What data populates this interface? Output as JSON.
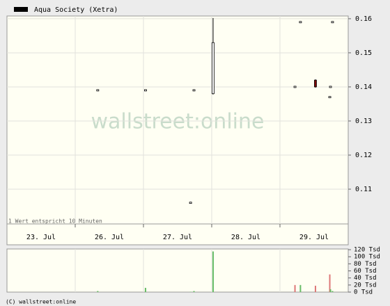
{
  "chart_data": {
    "type": "candlestick",
    "legend": "Aqua Society (Xetra)",
    "legend_color": "#000000",
    "watermark": "wallstreet:online",
    "note": "1 Wert entspricht 10 Minuten",
    "footer": "(C) wallstreet:online",
    "categories": [
      "23. Jul",
      "26. Jul",
      "27. Jul",
      "28. Jul",
      "29. Jul"
    ],
    "xlim": [
      0,
      5
    ],
    "x": [
      1.33,
      2.03,
      2.69,
      2.74,
      3.02,
      4.22,
      4.3,
      4.52,
      4.73,
      4.74,
      4.77
    ],
    "open": [
      0.139,
      0.139,
      0.106,
      0.139,
      0.138,
      0.14,
      0.159,
      0.142,
      0.137,
      0.14,
      0.159
    ],
    "high": [
      0.139,
      0.139,
      0.106,
      0.139,
      0.16,
      0.14,
      0.159,
      0.142,
      0.137,
      0.14,
      0.159
    ],
    "low": [
      0.139,
      0.139,
      0.106,
      0.139,
      0.138,
      0.14,
      0.159,
      0.14,
      0.137,
      0.14,
      0.159
    ],
    "close": [
      0.139,
      0.139,
      0.106,
      0.139,
      0.153,
      0.14,
      0.159,
      0.14,
      0.137,
      0.14,
      0.159
    ],
    "up_color": "#ffffff",
    "down_color": "#7a0000",
    "ylim": [
      0.0998,
      0.1608
    ],
    "yticks": [
      0.11,
      0.12,
      0.13,
      0.14,
      0.15,
      0.16
    ],
    "volume": [
      3,
      12,
      1,
      3,
      115,
      20,
      20,
      18,
      50,
      8,
      3
    ],
    "volume_colors": [
      "#66bb66",
      "#66bb66",
      "#66bb66",
      "#66bb66",
      "#66bb66",
      "#dd7777",
      "#66bb66",
      "#dd7777",
      "#dd7777",
      "#66bb66",
      "#66bb66"
    ],
    "y2lim": [
      0,
      122
    ],
    "y2ticks": [
      {
        "value": 0,
        "label": "0 Tsd"
      },
      {
        "value": 20,
        "label": "20 Tsd"
      },
      {
        "value": 40,
        "label": "40 Tsd"
      },
      {
        "value": 60,
        "label": "60 Tsd"
      },
      {
        "value": 80,
        "label": "80 Tsd"
      },
      {
        "value": 100,
        "label": "100 Tsd"
      },
      {
        "value": 120,
        "label": "120 Tsd"
      }
    ],
    "grid": true
  }
}
